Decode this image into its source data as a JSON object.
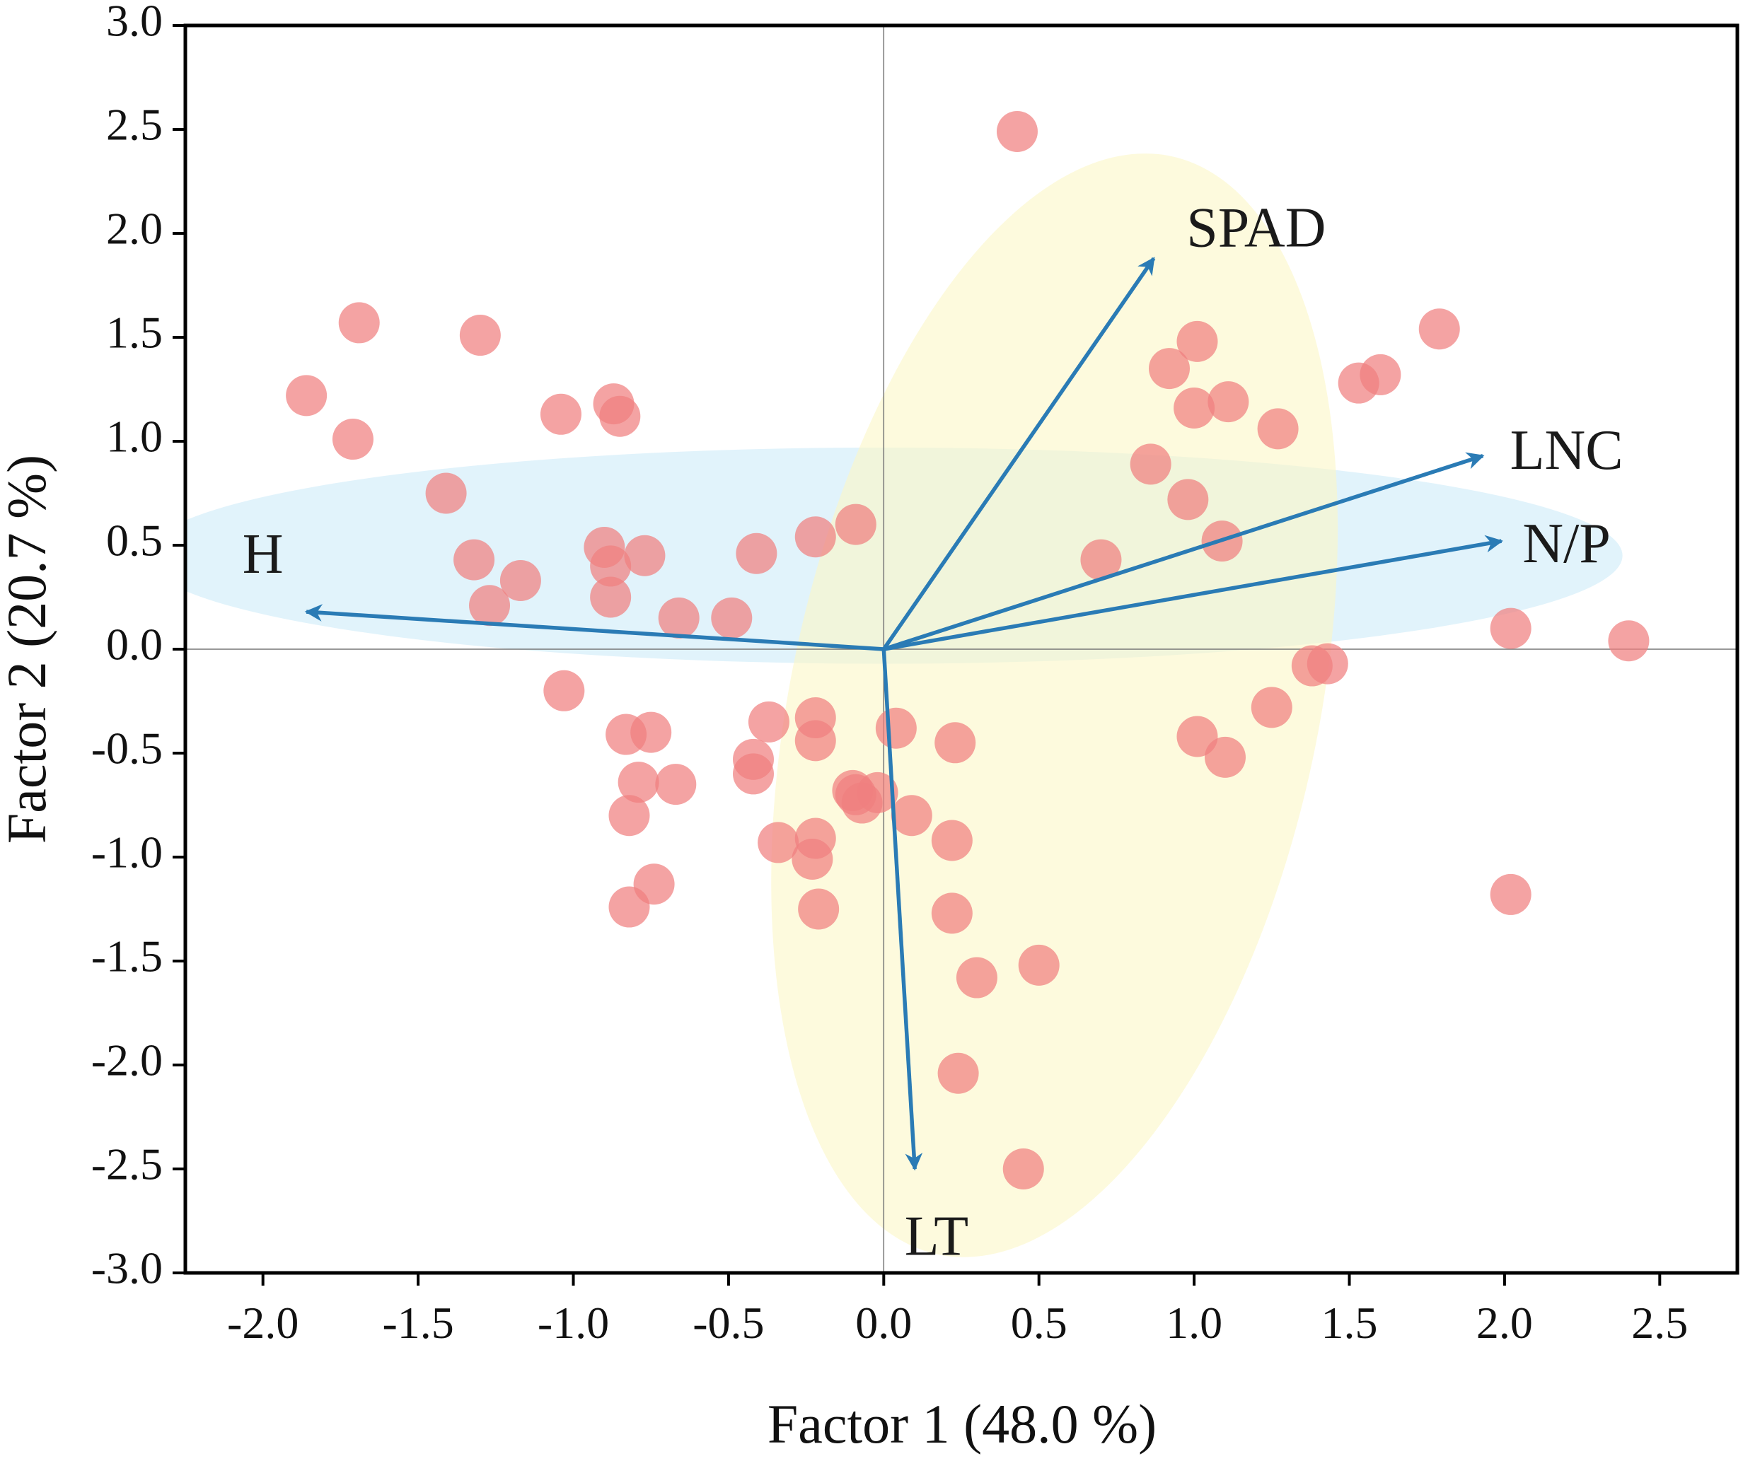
{
  "chart_data": {
    "type": "scatter",
    "title": "",
    "xlabel": "Factor 1 (48.0 %)",
    "ylabel": "Factor 2 (20.7 %)",
    "xlim": [
      -2.25,
      2.75
    ],
    "ylim": [
      -3.0,
      3.0
    ],
    "xticks": [
      "-2.0",
      "-1.5",
      "-1.0",
      "-0.5",
      "0.0",
      "0.5",
      "1.0",
      "1.5",
      "2.0",
      "2.5"
    ],
    "xtick_values": [
      -2.0,
      -1.5,
      -1.0,
      -0.5,
      0.0,
      0.5,
      1.0,
      1.5,
      2.0,
      2.5
    ],
    "yticks": [
      "3.0",
      "2.5",
      "2.0",
      "1.5",
      "1.0",
      "0.5",
      "0.0",
      "-0.5",
      "-1.0",
      "-1.5",
      "-2.0",
      "-2.5",
      "-3.0"
    ],
    "ytick_values": [
      3.0,
      2.5,
      2.0,
      1.5,
      1.0,
      0.5,
      0.0,
      -0.5,
      -1.0,
      -1.5,
      -2.0,
      -2.5,
      -3.0
    ],
    "grid": false,
    "reference_lines": {
      "x": 0.0,
      "y": 0.0
    },
    "ellipses": [
      {
        "name": "blue-group",
        "center": [
          0.0,
          0.45
        ],
        "semi_axis_x": 2.38,
        "semi_axis_y": 0.52,
        "angle_deg": 0,
        "color": "#cdebf8",
        "opacity": 0.6
      },
      {
        "name": "yellow-group",
        "center": [
          0.55,
          -0.27
        ],
        "semi_axis_x": 0.85,
        "semi_axis_y": 2.7,
        "angle_deg": 12,
        "color": "#fbf6c7",
        "opacity": 0.6
      }
    ],
    "vectors": [
      {
        "label": "SPAD",
        "x": 0.87,
        "y": 1.88,
        "label_x": 1.2,
        "label_y": 2.0
      },
      {
        "label": "LNC",
        "x": 1.93,
        "y": 0.93,
        "label_x": 2.2,
        "label_y": 0.93
      },
      {
        "label": "N/P",
        "x": 1.99,
        "y": 0.52,
        "label_x": 2.2,
        "label_y": 0.48
      },
      {
        "label": "H",
        "x": -1.86,
        "y": 0.18,
        "label_x": -2.0,
        "label_y": 0.43
      },
      {
        "label": "LT",
        "x": 0.1,
        "y": -2.5,
        "label_x": 0.17,
        "label_y": -2.85
      }
    ],
    "vector_color": "#2a7bb5",
    "point_color": "#f08080",
    "series": [
      {
        "name": "samples",
        "x": [
          0.43,
          -1.69,
          -1.3,
          -1.86,
          -1.71,
          -1.41,
          -1.32,
          -1.17,
          -1.27,
          -1.04,
          -0.87,
          -0.85,
          -0.9,
          -0.77,
          -0.88,
          -0.88,
          -0.66,
          -0.49,
          -0.41,
          -0.22,
          -0.09,
          -1.03,
          -0.83,
          -0.75,
          -0.37,
          -0.22,
          -0.22,
          -0.42,
          -0.42,
          -0.79,
          -0.67,
          -0.82,
          -0.34,
          -0.22,
          -0.23,
          -0.74,
          -0.82,
          -0.21,
          -0.1,
          -0.07,
          -0.09,
          -0.02,
          0.09,
          0.04,
          0.23,
          0.22,
          0.22,
          0.3,
          0.5,
          0.24,
          0.45,
          1.01,
          0.92,
          1.0,
          1.11,
          1.27,
          1.53,
          1.6,
          1.79,
          0.86,
          0.98,
          1.09,
          0.7,
          1.38,
          1.43,
          1.25,
          1.01,
          1.1,
          2.02,
          2.4,
          2.02
        ],
        "y": [
          2.49,
          1.57,
          1.51,
          1.22,
          1.01,
          0.75,
          0.43,
          0.33,
          0.21,
          1.13,
          1.18,
          1.12,
          0.49,
          0.45,
          0.4,
          0.25,
          0.15,
          0.15,
          0.46,
          0.54,
          0.6,
          -0.2,
          -0.41,
          -0.4,
          -0.35,
          -0.33,
          -0.44,
          -0.53,
          -0.6,
          -0.64,
          -0.65,
          -0.8,
          -0.93,
          -0.91,
          -1.01,
          -1.13,
          -1.24,
          -1.25,
          -0.68,
          -0.74,
          -0.7,
          -0.69,
          -0.8,
          -0.38,
          -0.45,
          -0.92,
          -1.27,
          -1.58,
          -1.52,
          -2.04,
          -2.5,
          1.48,
          1.35,
          1.16,
          1.19,
          1.06,
          1.28,
          1.32,
          1.54,
          0.89,
          0.72,
          0.52,
          0.43,
          -0.08,
          -0.07,
          -0.28,
          -0.42,
          -0.52,
          0.1,
          0.04,
          -1.18
        ]
      }
    ]
  }
}
